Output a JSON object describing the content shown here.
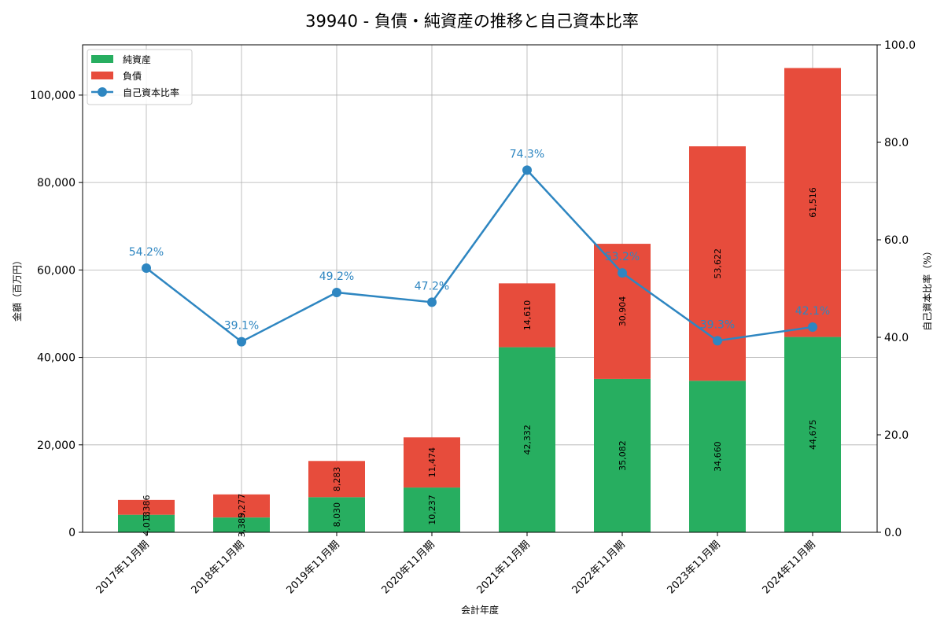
{
  "chart_data": {
    "type": "bar",
    "title": "39940 - 負債・純資産の推移と自己資本比率",
    "xlabel": "会計年度",
    "ylabel": "金額（百万円）",
    "y2label": "自己資本比率（%）",
    "categories": [
      "2017年11月期",
      "2018年11月期",
      "2019年11月期",
      "2020年11月期",
      "2021年11月期",
      "2022年11月期",
      "2023年11月期",
      "2024年11月期"
    ],
    "series": [
      {
        "name": "純資産",
        "type": "bar",
        "stack": true,
        "color": "#27ae60",
        "values": [
          4013,
          3389,
          8030,
          10237,
          42332,
          35082,
          34660,
          44675
        ],
        "labels": [
          "4,013",
          "3,389",
          "8,030",
          "10,237",
          "42,332",
          "35,082",
          "34,660",
          "44,675"
        ]
      },
      {
        "name": "負債",
        "type": "bar",
        "stack": true,
        "color": "#e74c3c",
        "values": [
          3386,
          5277,
          8283,
          11474,
          14610,
          30904,
          53622,
          61516
        ],
        "labels": [
          "3,386",
          "5,277",
          "8,283",
          "11,474",
          "14,610",
          "30,904",
          "53,622",
          "61,516"
        ]
      },
      {
        "name": "自己資本比率",
        "type": "line",
        "axis": "right",
        "color": "#2e86c1",
        "values": [
          54.2,
          39.1,
          49.2,
          47.2,
          74.3,
          53.2,
          39.3,
          42.1
        ],
        "labels": [
          "54.2%",
          "39.1%",
          "49.2%",
          "47.2%",
          "74.3%",
          "53.2%",
          "39.3%",
          "42.1%"
        ]
      }
    ],
    "ylim": [
      0,
      111500
    ],
    "y2lim": [
      0,
      100
    ],
    "yticks": [
      0,
      20000,
      40000,
      60000,
      80000,
      100000
    ],
    "ytick_labels": [
      "0",
      "20,000",
      "40,000",
      "60,000",
      "80,000",
      "100,000"
    ],
    "y2ticks": [
      0,
      20,
      40,
      60,
      80,
      100
    ],
    "y2tick_labels": [
      "0.0",
      "20.0",
      "40.0",
      "60.0",
      "80.0",
      "100.0"
    ],
    "grid": true,
    "legend_position": "upper left"
  }
}
